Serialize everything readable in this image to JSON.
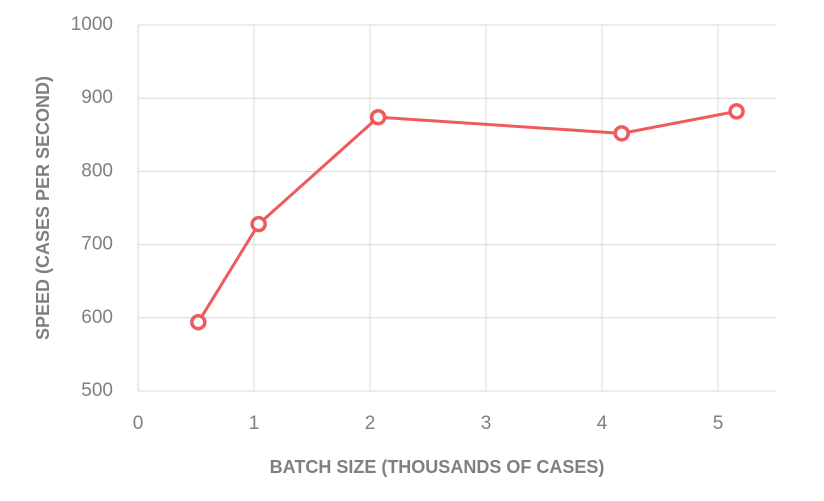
{
  "chart_data": {
    "type": "line",
    "x_label": "BATCH SIZE (THOUSANDS OF CASES)",
    "y_label": "SPEED (CASES PER SECOND)",
    "x": [
      0.52,
      1.04,
      2.07,
      4.17,
      5.16
    ],
    "series": [
      {
        "color": "#ef5b5b",
        "values": [
          594,
          728,
          874,
          852,
          882
        ]
      }
    ],
    "xlim": [
      0,
      5.5
    ],
    "xticks": [
      0,
      1,
      2,
      3,
      4,
      5
    ],
    "ylim": [
      500,
      1000
    ],
    "yticks": [
      500,
      600,
      700,
      800,
      900,
      1000
    ],
    "grid": true,
    "markers": true
  }
}
